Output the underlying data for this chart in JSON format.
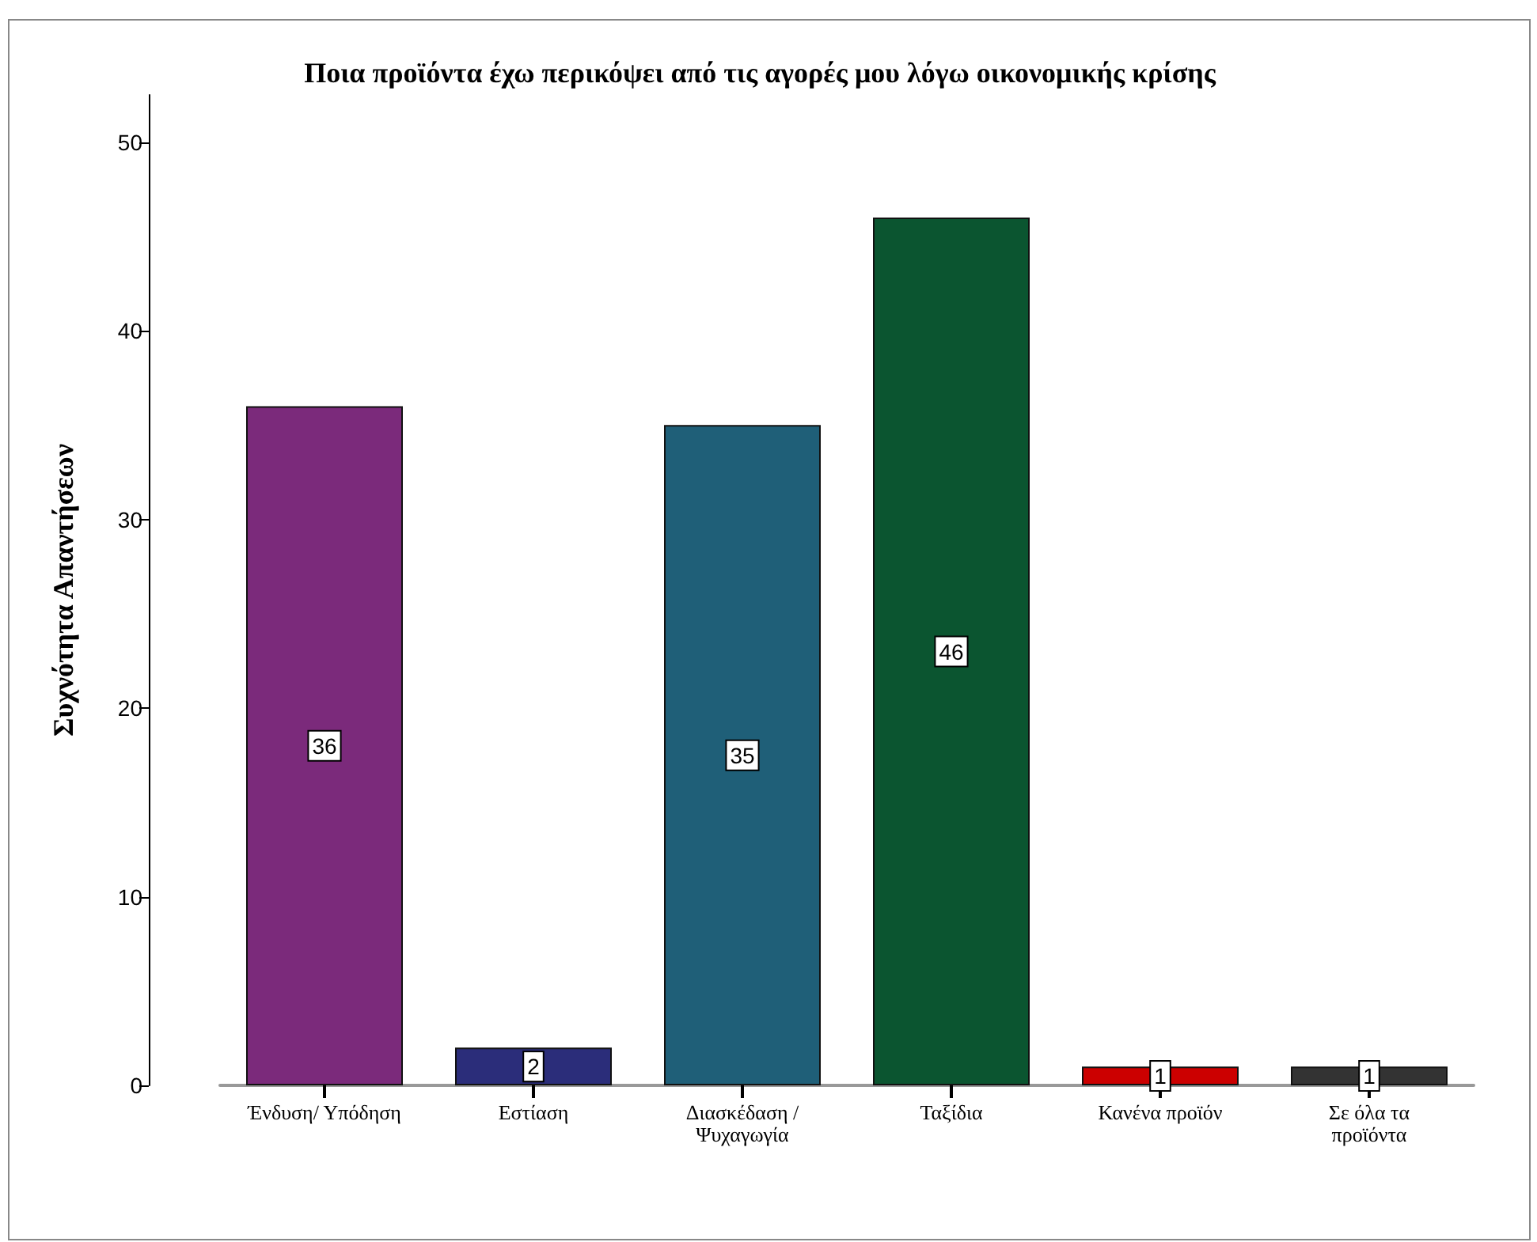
{
  "chart_data": {
    "type": "bar",
    "title": "Ποια προϊόντα έχω περικόψει από τις αγορές μου λόγω οικονομικής κρίσης",
    "ylabel": "Συχνότητα Απαντήσεων",
    "categories": [
      "Ένδυση/ Υπόδηση",
      "Εστίαση",
      "Διασκέδαση / Ψυχαγωγία",
      "Ταξίδια",
      "Κανένα προϊόν",
      "Σε όλα τα προϊόντα"
    ],
    "values": [
      36,
      2,
      35,
      46,
      1,
      1
    ],
    "colors": [
      "#7b2a7b",
      "#2b2d7a",
      "#1f5f78",
      "#0b5530",
      "#cc0000",
      "#333333"
    ],
    "ylim": [
      0,
      52.5
    ],
    "yticks": [
      0,
      10,
      20,
      30,
      40,
      50
    ],
    "grid": false,
    "legend": false,
    "data_labels": true
  }
}
